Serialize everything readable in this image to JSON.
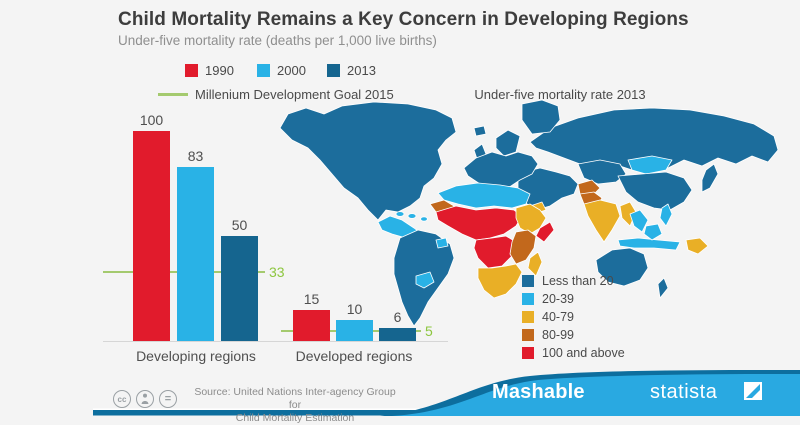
{
  "header": {
    "title": "Child Mortality Remains a Key Concern in Developing Regions",
    "subtitle": "Under-five mortality rate (deaths per 1,000 live births)"
  },
  "chart": {
    "mdg_label": "Millenium Development Goal 2015"
  },
  "chart_data": {
    "type": "bar",
    "categories": [
      "Developing regions",
      "Developed regions"
    ],
    "series": [
      {
        "name": "1990",
        "color": "#e11b2c",
        "values": [
          100,
          15
        ]
      },
      {
        "name": "2000",
        "color": "#29b2e6",
        "values": [
          83,
          10
        ]
      },
      {
        "name": "2013",
        "color": "#15658f",
        "values": [
          50,
          6
        ]
      }
    ],
    "goal_lines": [
      {
        "label": "33",
        "value": 33
      },
      {
        "label": "5",
        "value": 5
      }
    ],
    "goal_line_color": "#a4ca6e",
    "goal_label_color": "#8dc63f",
    "ylim": [
      0,
      110
    ],
    "grid": false,
    "legend_position": "top"
  },
  "map": {
    "title": "Under-five mortality rate 2013",
    "legend": [
      {
        "label": "Less than 20",
        "color": "#1c6d9c"
      },
      {
        "label": "20-39",
        "color": "#29b2e6"
      },
      {
        "label": "40-79",
        "color": "#e9af26"
      },
      {
        "label": "80-99",
        "color": "#c2681c"
      },
      {
        "label": "100 and above",
        "color": "#e11b2c"
      }
    ],
    "category_colors": {
      "lt20": "#1c6d9c",
      "c20_39": "#29b2e6",
      "c40_79": "#e9af26",
      "c80_99": "#c2681c",
      "c100_plus": "#e11b2c"
    },
    "region_categories": {
      "north-america": "lt20",
      "greenland": "lt20",
      "central-america": "c20_39",
      "caribbean": "c20_39",
      "south-america": "lt20",
      "bolivia": "c20_39",
      "guyana": "c20_39",
      "iceland": "lt20",
      "uk": "lt20",
      "europe": "lt20",
      "scandinavia": "lt20",
      "russia": "lt20",
      "central-asia": "lt20",
      "mongolia": "c20_39",
      "china": "lt20",
      "japan": "lt20",
      "middle-east": "lt20",
      "yemen": "c40_79",
      "afghanistan": "c80_99",
      "pakistan": "c80_99",
      "india": "c40_79",
      "myanmar": "c40_79",
      "indochina": "c20_39",
      "philippines": "c20_39",
      "indonesia": "c20_39",
      "papua-new-guinea": "c40_79",
      "australia": "lt20",
      "new-zealand": "lt20",
      "north-africa": "c20_39",
      "mauritania": "c80_99",
      "sahel-west-africa": "c100_plus",
      "sudan-horn": "c40_79",
      "somalia": "c100_plus",
      "central-africa": "c100_plus",
      "east-africa": "c80_99",
      "southern-africa": "c40_79",
      "madagascar": "c40_79"
    }
  },
  "footer": {
    "source_line1": "Source: United Nations Inter-agency Group for",
    "source_line2": "Child Mortality Estimation",
    "cc_label": "cc",
    "nd_label": "=",
    "mashable": "Mashable",
    "statista": "statista",
    "band_light": "#29a9e1",
    "band_dark": "#0d6e9e"
  }
}
